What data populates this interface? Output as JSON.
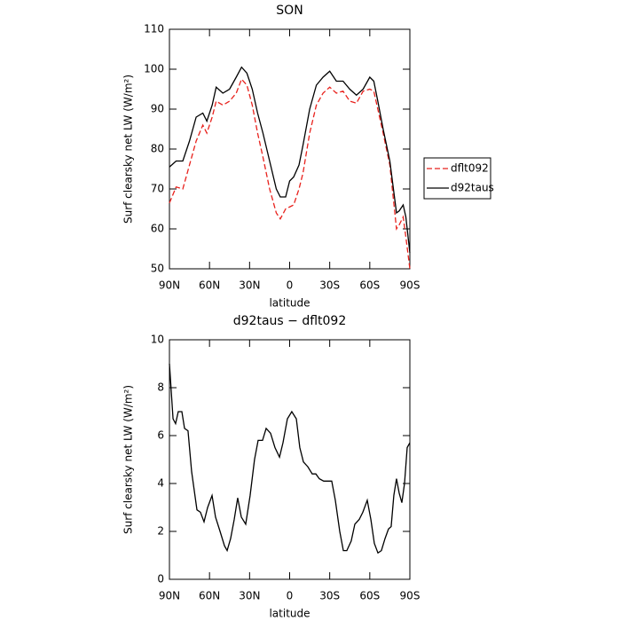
{
  "chart_data": [
    {
      "type": "line",
      "title": "SON",
      "xlabel": "latitude",
      "ylabel": "Surf clearsky net LW (W/m²)",
      "x": [
        90,
        85,
        80,
        75,
        70,
        65,
        62,
        58,
        55,
        50,
        45,
        40,
        36,
        32,
        28,
        24,
        20,
        15,
        10,
        7,
        3,
        0,
        -3,
        -7,
        -10,
        -15,
        -20,
        -25,
        -30,
        -35,
        -40,
        -45,
        -50,
        -55,
        -60,
        -63,
        -66,
        -70,
        -75,
        -80,
        -82,
        -85,
        -87,
        -90
      ],
      "series": [
        {
          "name": "dflt092",
          "color": "#e8211c",
          "linestyle": "dashed",
          "values": [
            66.5,
            70.5,
            70,
            76,
            82,
            86,
            84,
            88,
            92,
            91,
            92,
            94,
            97.5,
            96,
            91,
            84,
            78,
            70,
            64,
            62.5,
            65,
            65.5,
            66,
            70,
            74,
            84,
            91,
            94,
            95.5,
            94,
            94.5,
            92,
            91.5,
            94.5,
            95,
            94.5,
            90,
            84,
            76,
            60,
            61,
            63,
            58,
            50
          ]
        },
        {
          "name": "d92taus",
          "color": "#000000",
          "linestyle": "solid",
          "values": [
            75.5,
            77,
            77,
            82,
            88,
            89,
            87,
            91,
            95.5,
            94,
            95,
            98,
            100.5,
            99,
            95,
            89,
            84,
            77,
            70,
            68,
            68,
            72,
            73,
            76,
            81,
            90,
            96,
            98,
            99.5,
            97,
            97,
            95,
            93.5,
            95,
            98,
            97,
            92,
            85,
            77,
            64,
            64.5,
            66,
            63,
            54
          ]
        }
      ],
      "xlim": [
        90,
        -90
      ],
      "ylim": [
        50,
        110
      ],
      "xticks": [
        {
          "value": 90,
          "label": "90N"
        },
        {
          "value": 60,
          "label": "60N"
        },
        {
          "value": 30,
          "label": "30N"
        },
        0,
        {
          "value": -30,
          "label": "30S"
        },
        {
          "value": -60,
          "label": "60S"
        },
        {
          "value": -90,
          "label": "90S"
        }
      ],
      "yticks": [
        50,
        60,
        70,
        80,
        90,
        100,
        110
      ],
      "legend": "right"
    },
    {
      "type": "line",
      "title": "d92taus − dflt092",
      "xlabel": "latitude",
      "ylabel": "Surf clearsky net LW (W/m²)",
      "x": [
        90,
        87.3,
        85.4,
        83.4,
        80.7,
        78.7,
        76.1,
        73.4,
        69.4,
        66.8,
        64.1,
        61.4,
        58.1,
        55.5,
        52.1,
        48.8,
        46.8,
        44.2,
        41.5,
        38.9,
        36.2,
        32.9,
        29.6,
        26.3,
        23.6,
        20.3,
        17.6,
        14.3,
        11,
        7.6,
        5,
        1.7,
        -1.6,
        -5,
        -7.6,
        -10.3,
        -13.6,
        -16.9,
        -19.6,
        -22.2,
        -25.5,
        -28.9,
        -31.5,
        -34.2,
        -37.5,
        -40.2,
        -42.8,
        -46.1,
        -48.8,
        -52.1,
        -54.8,
        -58.1,
        -60.8,
        -63.4,
        -66.1,
        -68.7,
        -71.4,
        -74,
        -76,
        -78,
        -80,
        -82,
        -84,
        -86,
        -88,
        -90
      ],
      "series": [
        {
          "color": "#000000",
          "linestyle": "solid",
          "values": [
            9,
            6.7,
            6.5,
            7,
            7,
            6.3,
            6.2,
            4.5,
            2.9,
            2.8,
            2.4,
            3,
            3.5,
            2.6,
            2,
            1.4,
            1.2,
            1.7,
            2.5,
            3.4,
            2.6,
            2.3,
            3.5,
            5,
            5.8,
            5.8,
            6.3,
            6.1,
            5.5,
            5.1,
            5.7,
            6.7,
            7,
            6.7,
            5.5,
            4.9,
            4.7,
            4.4,
            4.4,
            4.2,
            4.1,
            4.1,
            4.1,
            3.3,
            2,
            1.2,
            1.2,
            1.6,
            2.3,
            2.5,
            2.8,
            3.3,
            2.5,
            1.5,
            1.1,
            1.2,
            1.7,
            2.1,
            2.2,
            3.5,
            4.2,
            3.6,
            3.2,
            4,
            5.5,
            5.7
          ]
        }
      ],
      "xlim": [
        90,
        -90
      ],
      "ylim": [
        0,
        10
      ],
      "xticks": [
        {
          "value": 90,
          "label": "90N"
        },
        {
          "value": 60,
          "label": "60N"
        },
        {
          "value": 30,
          "label": "30N"
        },
        0,
        {
          "value": -30,
          "label": "30S"
        },
        {
          "value": -60,
          "label": "60S"
        },
        {
          "value": -90,
          "label": "90S"
        }
      ],
      "yticks": [
        0,
        2,
        4,
        6,
        8,
        10
      ]
    }
  ]
}
